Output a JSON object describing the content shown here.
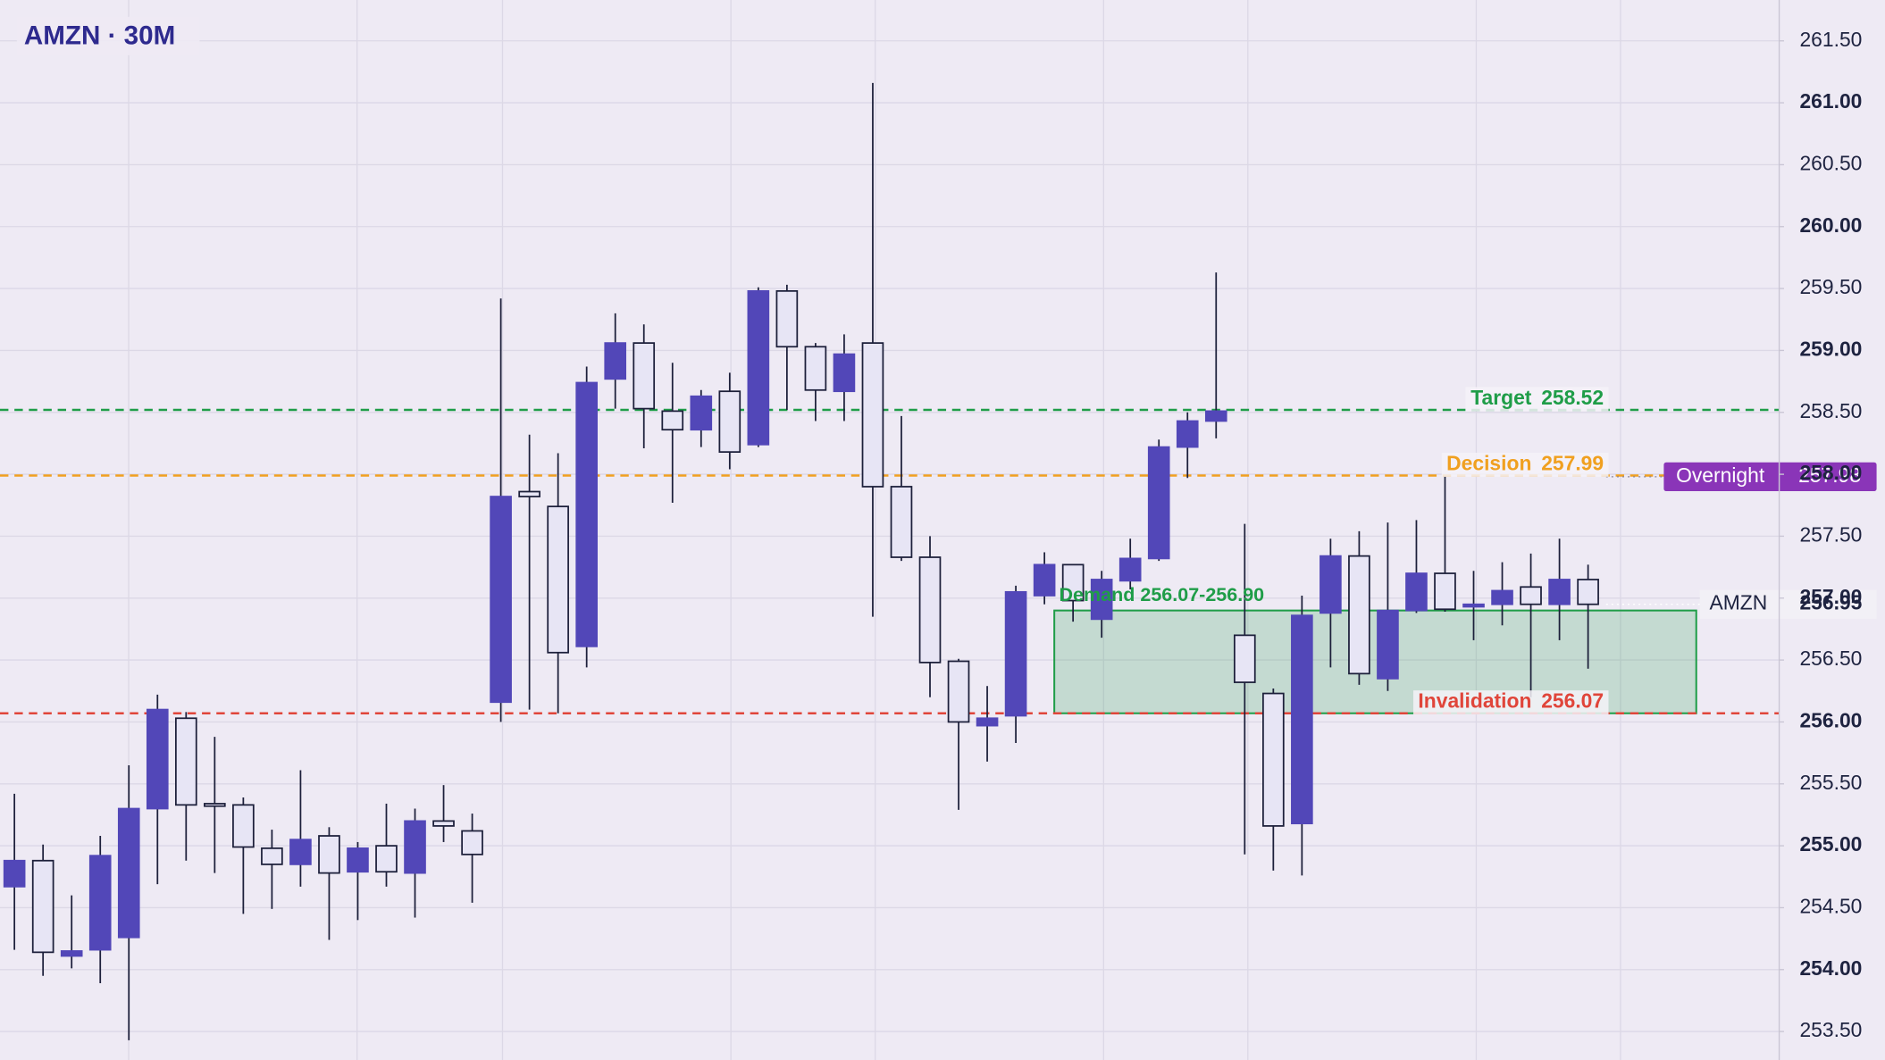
{
  "chart_data": {
    "type": "candlestick",
    "title": "AMZN · 30M",
    "open": [
      254.67,
      254.88,
      254.11,
      254.16,
      254.26,
      255.3,
      256.03,
      255.34,
      255.33,
      254.98,
      254.85,
      255.08,
      254.79,
      255.0,
      254.78,
      255.2,
      255.12,
      256.16,
      257.86,
      257.74,
      256.61,
      258.77,
      259.06,
      258.51,
      258.36,
      258.67,
      258.24,
      259.48,
      259.03,
      258.67,
      259.06,
      257.9,
      257.33,
      256.49,
      255.97,
      256.05,
      257.02,
      257.27,
      256.83,
      257.14,
      257.32,
      258.22,
      258.43,
      256.7,
      256.23,
      255.18,
      256.88,
      257.34,
      256.35,
      256.9,
      257.2,
      256.93,
      256.95,
      257.09,
      256.95,
      257.15
    ],
    "high": [
      255.42,
      255.01,
      254.6,
      255.08,
      255.65,
      256.22,
      256.08,
      255.88,
      255.39,
      255.13,
      255.61,
      255.15,
      255.03,
      255.34,
      255.3,
      255.49,
      255.26,
      259.42,
      258.32,
      258.17,
      258.87,
      259.3,
      259.21,
      258.9,
      258.68,
      258.82,
      259.51,
      259.53,
      259.06,
      259.13,
      261.16,
      258.47,
      257.5,
      256.51,
      256.29,
      257.1,
      257.37,
      257.27,
      257.22,
      257.48,
      258.28,
      258.5,
      259.63,
      257.6,
      256.27,
      257.02,
      257.48,
      257.54,
      257.61,
      257.63,
      257.98,
      257.22,
      257.29,
      257.36,
      257.48,
      257.27
    ],
    "low": [
      254.16,
      253.95,
      254.01,
      253.89,
      253.43,
      254.69,
      254.88,
      254.78,
      254.45,
      254.49,
      254.67,
      254.24,
      254.4,
      254.67,
      254.42,
      255.03,
      254.54,
      256.0,
      256.1,
      256.07,
      256.44,
      258.53,
      258.21,
      257.77,
      258.22,
      258.04,
      258.22,
      258.52,
      258.43,
      258.43,
      256.85,
      257.3,
      256.2,
      255.29,
      255.68,
      255.83,
      256.95,
      256.81,
      256.68,
      257.07,
      257.3,
      257.97,
      258.29,
      254.93,
      254.8,
      254.76,
      256.44,
      256.3,
      256.25,
      256.88,
      256.89,
      256.66,
      256.78,
      256.2,
      256.66,
      256.43
    ],
    "close": [
      254.88,
      254.14,
      254.15,
      254.92,
      255.3,
      256.1,
      255.33,
      255.32,
      254.99,
      254.85,
      255.05,
      254.78,
      254.98,
      254.79,
      255.2,
      255.16,
      254.93,
      257.82,
      257.82,
      256.56,
      258.74,
      259.06,
      258.53,
      258.36,
      258.63,
      258.18,
      259.48,
      259.03,
      258.68,
      258.97,
      257.9,
      257.33,
      256.48,
      256.0,
      256.03,
      257.05,
      257.27,
      256.98,
      257.15,
      257.32,
      258.22,
      258.43,
      258.51,
      256.32,
      255.16,
      256.86,
      257.34,
      256.39,
      256.9,
      257.2,
      256.91,
      256.95,
      257.06,
      256.95,
      257.15,
      256.95
    ],
    "colors": {
      "up": "#5247b8",
      "down": "#e7e5f5",
      "outline": "#1c1f3a"
    },
    "ylim": [
      253.27,
      261.83
    ],
    "yticks": [
      {
        "value": 253.5,
        "label": "253.50"
      },
      {
        "value": 254,
        "label": "254.00"
      },
      {
        "value": 254.5,
        "label": "254.50"
      },
      {
        "value": 255,
        "label": "255.00"
      },
      {
        "value": 255.5,
        "label": "255.50"
      },
      {
        "value": 256,
        "label": "256.00"
      },
      {
        "value": 256.5,
        "label": "256.50"
      },
      {
        "value": 257,
        "label": "257.00"
      },
      {
        "value": 257.5,
        "label": "257.50"
      },
      {
        "value": 258,
        "label": "258.00"
      },
      {
        "value": 258.5,
        "label": "258.50"
      },
      {
        "value": 259,
        "label": "259.00"
      },
      {
        "value": 259.5,
        "label": "259.50"
      },
      {
        "value": 260,
        "label": "260.00"
      },
      {
        "value": 260.5,
        "label": "260.50"
      },
      {
        "value": 261,
        "label": "261.00"
      },
      {
        "value": 261.5,
        "label": "261.50"
      }
    ],
    "grid": true,
    "levels": [
      {
        "label": "Target",
        "value": 258.52,
        "color": "#1f9d48"
      },
      {
        "label": "Decision",
        "value": 257.99,
        "color": "#f0a020"
      },
      {
        "label": "Invalidation",
        "value": 256.07,
        "color": "#e0453a"
      }
    ],
    "zone": {
      "label": "Demand 256.07-256.90",
      "low": 256.07,
      "high": 256.9,
      "color": "#1f9d48"
    },
    "overnight": {
      "label": "Overnight",
      "value": 257.98,
      "color": "#8a35b8"
    },
    "last": {
      "label": "AMZN",
      "value": 256.95
    }
  }
}
